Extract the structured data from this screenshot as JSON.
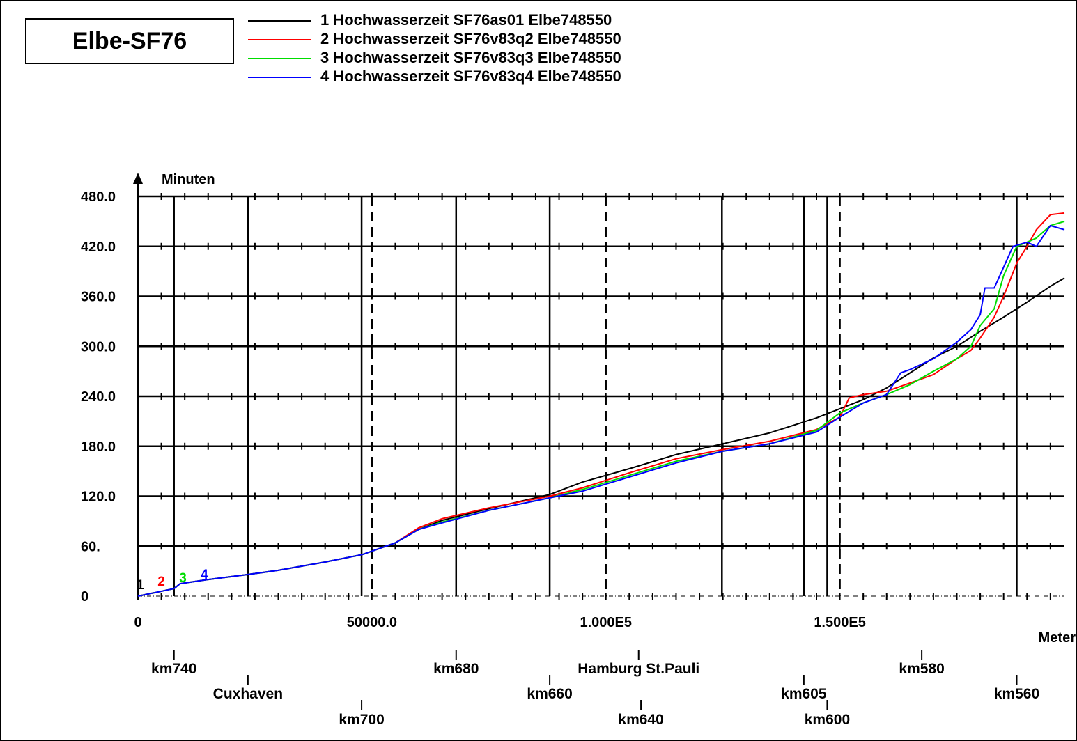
{
  "title": "Elbe-SF76",
  "legend": [
    {
      "label": "1 Hochwasserzeit SF76as01 Elbe748550",
      "color": "#000000"
    },
    {
      "label": "2 Hochwasserzeit SF76v83q2 Elbe748550",
      "color": "#ff0000"
    },
    {
      "label": "3 Hochwasserzeit SF76v83q3 Elbe748550",
      "color": "#00dd00"
    },
    {
      "label": "4 Hochwasserzeit SF76v83q4 Elbe748550",
      "color": "#0000ff"
    }
  ],
  "chart_data": {
    "type": "line",
    "ylabel": "Minuten",
    "xlabel": "Meter",
    "xlim": [
      0,
      198000
    ],
    "ylim": [
      0,
      480
    ],
    "y_ticks": [
      "0",
      "60.",
      "120.0",
      "180.0",
      "240.0",
      "300.0",
      "360.0",
      "420.0",
      "480.0"
    ],
    "x_ticks": [
      {
        "value": 0,
        "label": "0"
      },
      {
        "value": 50000,
        "label": "50000.0"
      },
      {
        "value": 100000,
        "label": "1.000E5"
      },
      {
        "value": 150000,
        "label": "1.500E5"
      }
    ],
    "grid": true,
    "solid_reference_lines_x": [
      7700,
      23500,
      47800,
      68000,
      88000,
      124800,
      142300,
      147300,
      187800
    ],
    "dashed_reference_lines_x": [
      50000,
      100000,
      150000
    ],
    "km_annotations": [
      {
        "label": "km740",
        "x": 7700,
        "row": 1
      },
      {
        "label": "km680",
        "x": 68000,
        "row": 1
      },
      {
        "label": "Hamburg St.Pauli",
        "x": 107000,
        "row": 1
      },
      {
        "label": "km580",
        "x": 167500,
        "row": 1
      },
      {
        "label": "Cuxhaven",
        "x": 23500,
        "row": 2
      },
      {
        "label": "km660",
        "x": 88000,
        "row": 2
      },
      {
        "label": "km605",
        "x": 142300,
        "row": 2
      },
      {
        "label": "km560",
        "x": 187800,
        "row": 2
      },
      {
        "label": "km700",
        "x": 47800,
        "row": 3
      },
      {
        "label": "km640",
        "x": 107500,
        "row": 3
      },
      {
        "label": "km600",
        "x": 147300,
        "row": 3
      }
    ],
    "series_markers": [
      {
        "label": "1",
        "x": 500,
        "color": "#000000"
      },
      {
        "label": "2",
        "x": 5000,
        "color": "#ff0000"
      },
      {
        "label": "3",
        "x": 9600,
        "color": "#00dd00"
      },
      {
        "label": "4",
        "x": 14200,
        "color": "#0000ff"
      }
    ],
    "series": [
      {
        "name": "1 Hochwasserzeit SF76as01 Elbe748550",
        "color": "#000000",
        "x": [
          0,
          7700,
          9000,
          15000,
          23500,
          30000,
          40000,
          48000,
          55000,
          60000,
          65000,
          75000,
          88000,
          95000,
          105000,
          115000,
          125000,
          135000,
          145000,
          150000,
          155000,
          160000,
          165000,
          170000,
          175000,
          180000,
          185000,
          187800,
          190000,
          195000,
          198000
        ],
        "y": [
          0,
          9,
          15,
          20,
          26,
          31,
          41,
          50,
          64,
          80,
          91,
          105,
          122,
          137,
          153,
          170,
          183,
          196,
          214,
          225,
          236,
          250,
          268,
          286,
          300,
          318,
          335,
          345,
          353,
          372,
          382
        ]
      },
      {
        "name": "2 Hochwasserzeit SF76v83q2 Elbe748550",
        "color": "#ff0000",
        "x": [
          0,
          7700,
          9000,
          15000,
          23500,
          30000,
          40000,
          48000,
          55000,
          60000,
          65000,
          75000,
          88000,
          95000,
          105000,
          115000,
          125000,
          135000,
          145000,
          150000,
          152000,
          155000,
          160000,
          165000,
          170000,
          175000,
          178000,
          180000,
          183000,
          185000,
          187800,
          190000,
          192000,
          195000,
          198000
        ],
        "y": [
          0,
          9,
          15,
          20,
          26,
          31,
          41,
          50,
          64,
          82,
          93,
          106,
          120,
          130,
          148,
          165,
          176,
          186,
          200,
          215,
          238,
          242,
          246,
          256,
          266,
          285,
          295,
          310,
          335,
          360,
          400,
          420,
          440,
          458,
          460
        ]
      },
      {
        "name": "3 Hochwasserzeit SF76v83q3 Elbe748550",
        "color": "#00dd00",
        "x": [
          0,
          7700,
          9000,
          15000,
          23500,
          30000,
          40000,
          48000,
          55000,
          60000,
          65000,
          75000,
          88000,
          95000,
          105000,
          115000,
          125000,
          135000,
          145000,
          150000,
          155000,
          160000,
          165000,
          170000,
          175000,
          178000,
          180000,
          183000,
          185000,
          187800,
          190000,
          192000,
          195000,
          198000
        ],
        "y": [
          0,
          9,
          15,
          20,
          26,
          31,
          41,
          50,
          64,
          80,
          89,
          103,
          118,
          128,
          145,
          162,
          174,
          183,
          199,
          220,
          232,
          242,
          254,
          270,
          285,
          300,
          325,
          345,
          385,
          420,
          425,
          430,
          445,
          450
        ]
      },
      {
        "name": "4 Hochwasserzeit SF76v83q4 Elbe748550",
        "color": "#0000ff",
        "x": [
          0,
          7700,
          9000,
          15000,
          23500,
          30000,
          40000,
          48000,
          55000,
          60000,
          65000,
          75000,
          88000,
          95000,
          105000,
          115000,
          125000,
          135000,
          145000,
          150000,
          155000,
          160000,
          163000,
          165000,
          170000,
          175000,
          178000,
          180000,
          181000,
          183000,
          185000,
          187000,
          190000,
          192000,
          195000,
          198000
        ],
        "y": [
          0,
          9,
          15,
          20,
          26,
          31,
          41,
          50,
          64,
          80,
          88,
          103,
          118,
          126,
          143,
          160,
          174,
          183,
          197,
          215,
          232,
          242,
          268,
          272,
          285,
          305,
          320,
          338,
          370,
          370,
          395,
          420,
          425,
          420,
          445,
          440
        ]
      }
    ]
  }
}
